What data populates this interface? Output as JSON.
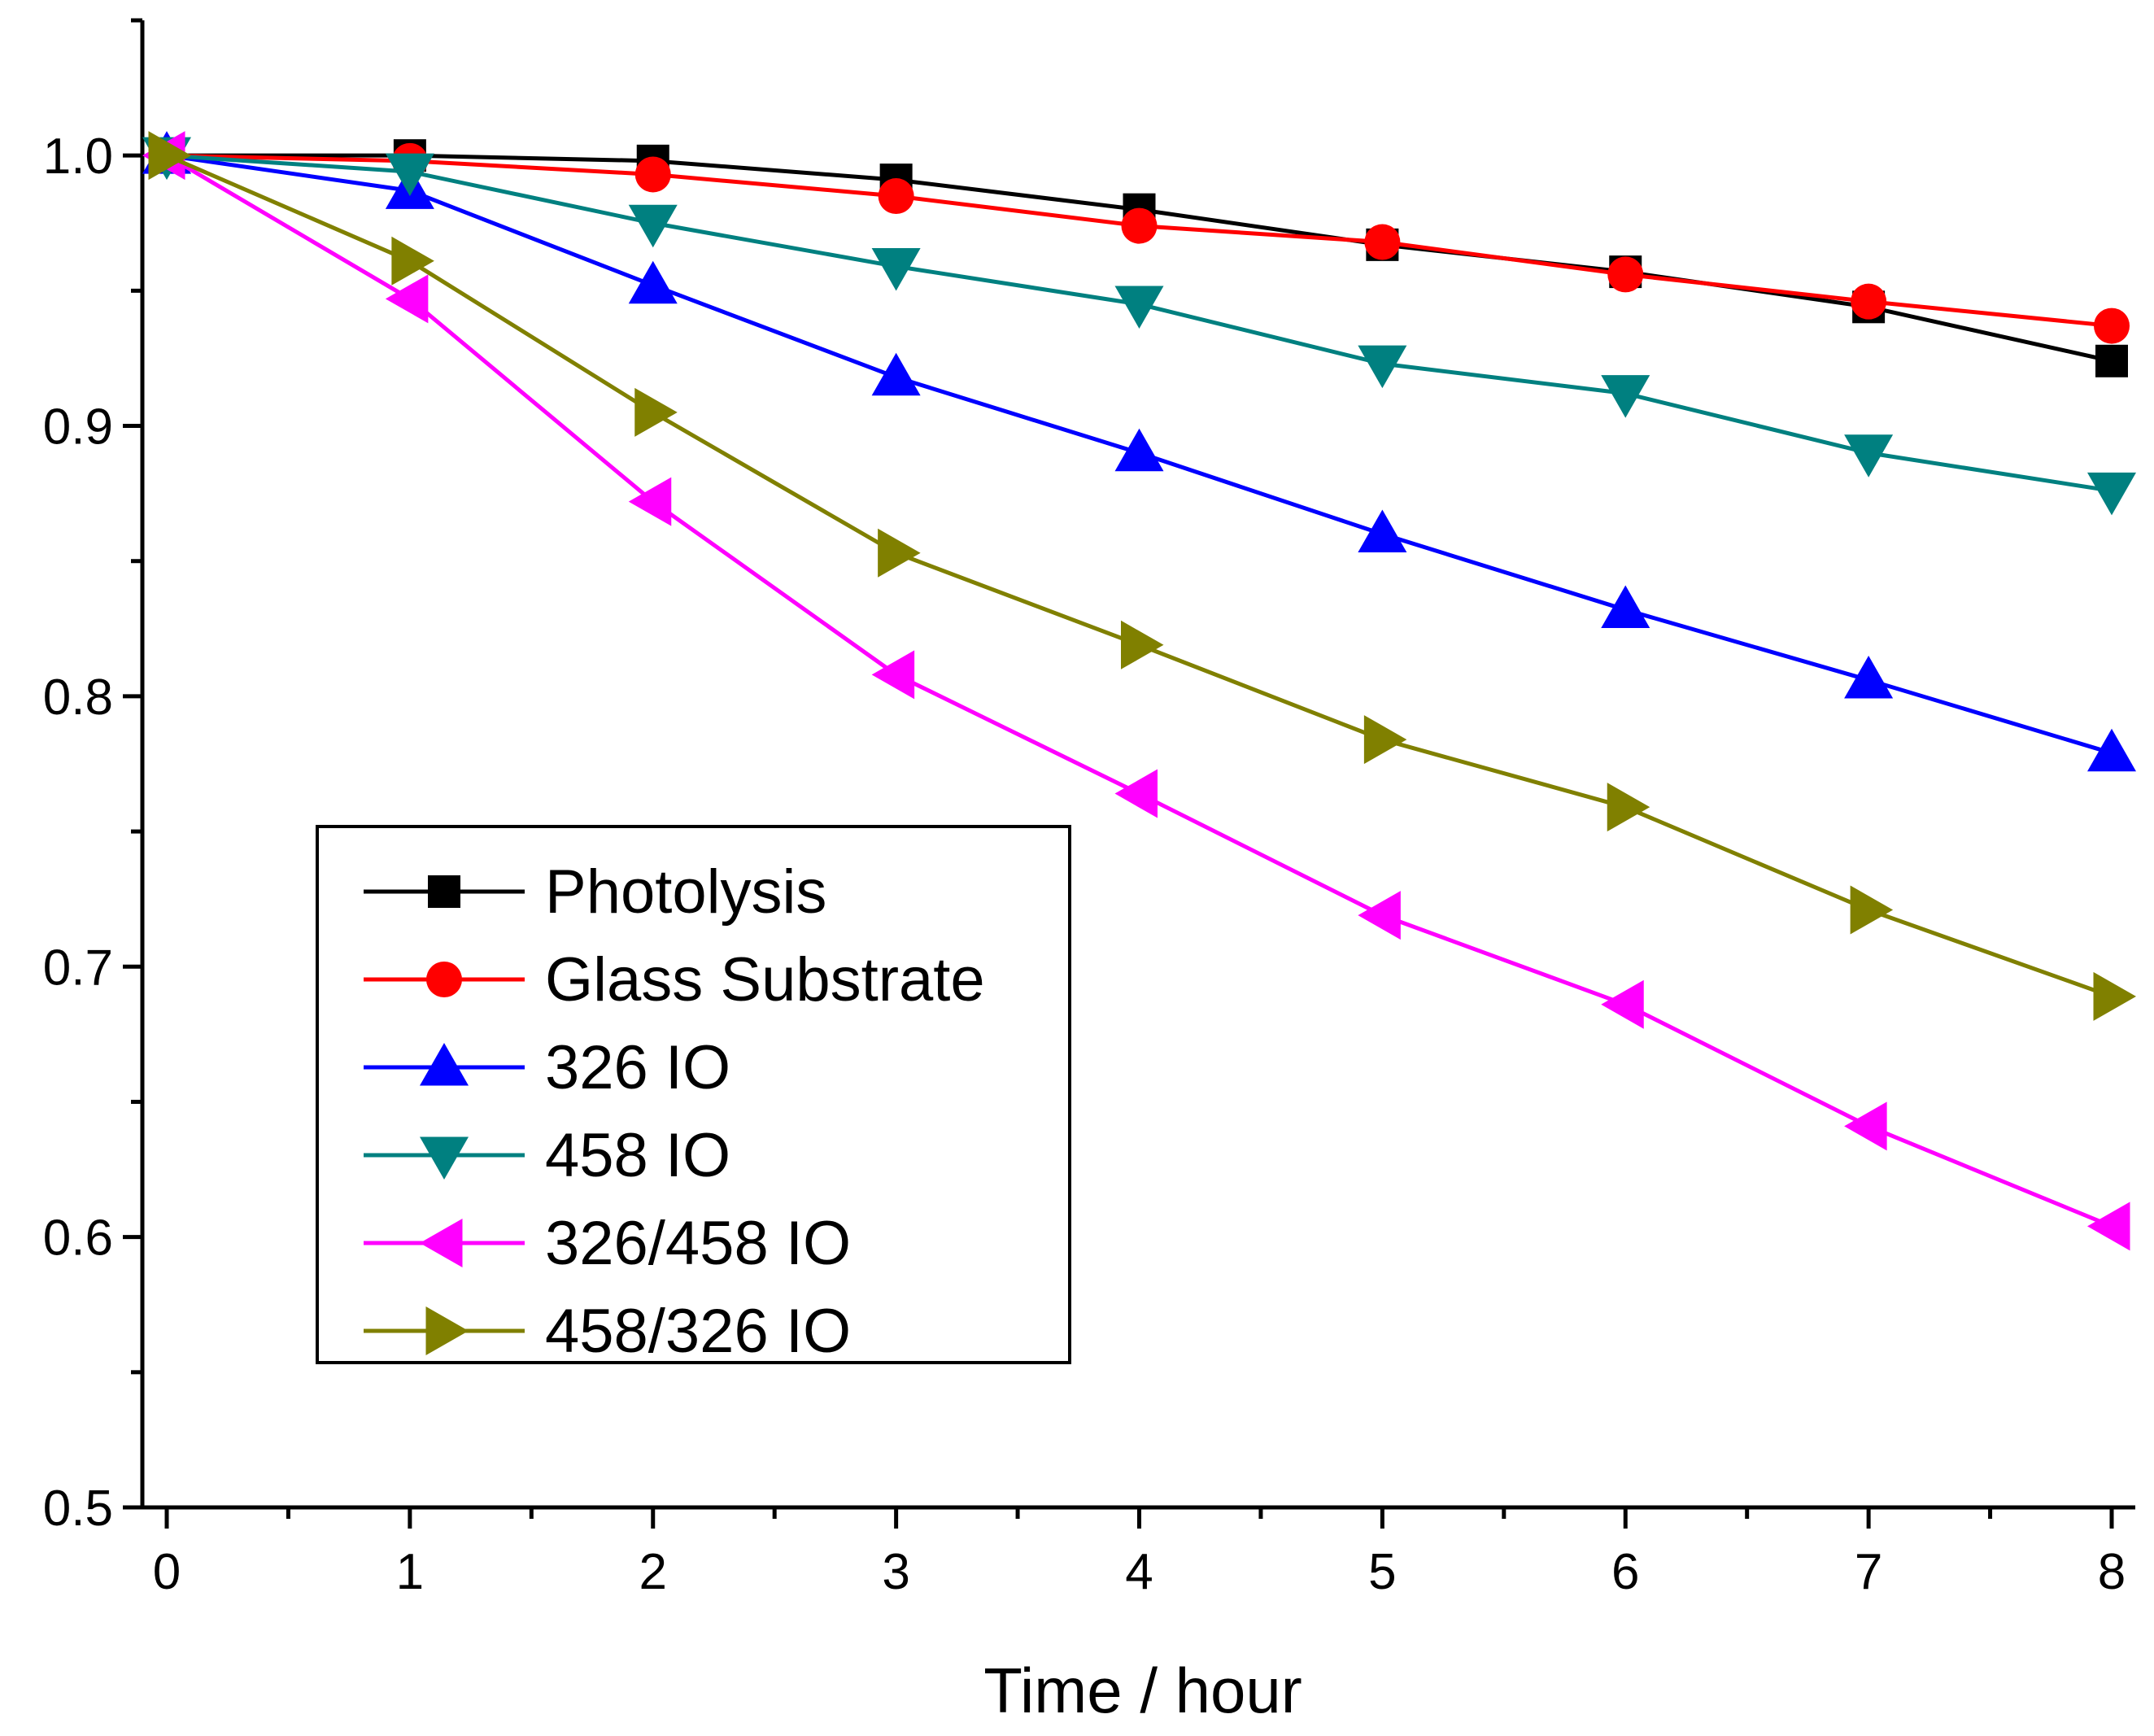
{
  "chart_data": {
    "type": "line",
    "title": "",
    "xlabel": "Time / hour",
    "ylabel": "",
    "xlim": [
      -0.1,
      8.1
    ],
    "ylim": [
      0.5,
      1.05
    ],
    "x_major_ticks": [
      0,
      1,
      2,
      3,
      4,
      5,
      6,
      7,
      8
    ],
    "x_tick_labels": [
      "0",
      "1",
      "2",
      "3",
      "4",
      "5",
      "6",
      "7",
      "8"
    ],
    "y_major_ticks": [
      0.5,
      0.6,
      0.7,
      0.8,
      0.9,
      1.0
    ],
    "y_tick_labels": [
      "0.5",
      "0.6",
      "0.7",
      "0.8",
      "0.9",
      "1.0"
    ],
    "y_minor_ticks": [
      0.55,
      0.65,
      0.75,
      0.85,
      0.95,
      1.05
    ],
    "grid": false,
    "legend_position": "bottom-left",
    "x": [
      0,
      1,
      2,
      3,
      4,
      5,
      6,
      7,
      8
    ],
    "series": [
      {
        "name": "Photolysis",
        "color": "#000000",
        "marker": "square",
        "values": [
          1.0,
          1.0,
          0.998,
          0.991,
          0.98,
          0.967,
          0.957,
          0.944,
          0.924
        ]
      },
      {
        "name": "Glass Substrate",
        "color": "#ff0000",
        "marker": "circle",
        "values": [
          1.0,
          0.998,
          0.993,
          0.985,
          0.974,
          0.968,
          0.956,
          0.946,
          0.937
        ]
      },
      {
        "name": "326 IO",
        "color": "#0000ff",
        "marker": "triangle-up",
        "values": [
          1.0,
          0.987,
          0.952,
          0.918,
          0.89,
          0.86,
          0.832,
          0.806,
          0.779
        ]
      },
      {
        "name": "458 IO",
        "color": "#008080",
        "marker": "triangle-down",
        "values": [
          1.0,
          0.994,
          0.975,
          0.959,
          0.945,
          0.923,
          0.912,
          0.89,
          0.876
        ]
      },
      {
        "name": "326/458 IO",
        "color": "#ff00ff",
        "marker": "triangle-left",
        "values": [
          1.0,
          0.947,
          0.872,
          0.808,
          0.764,
          0.719,
          0.686,
          0.641,
          0.604
        ]
      },
      {
        "name": "458/326 IO",
        "color": "#808000",
        "marker": "triangle-right",
        "values": [
          1.0,
          0.961,
          0.905,
          0.853,
          0.819,
          0.784,
          0.759,
          0.721,
          0.689
        ]
      }
    ]
  }
}
